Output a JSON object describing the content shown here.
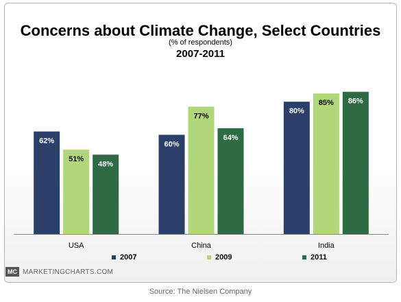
{
  "chart_data": {
    "type": "bar",
    "title": "Concerns about Climate Change, Select Countries",
    "subtitle": "(% of respondents)",
    "period": "2007-2011",
    "categories": [
      "USA",
      "China",
      "India"
    ],
    "series": [
      {
        "name": "2007",
        "color": "#2b3f6b",
        "values": [
          62,
          60,
          80
        ],
        "labels": [
          "62%",
          "60%",
          "80%"
        ]
      },
      {
        "name": "2009",
        "color": "#b2d77a",
        "values": [
          51,
          77,
          85
        ],
        "labels": [
          "51%",
          "77%",
          "85%"
        ]
      },
      {
        "name": "2011",
        "color": "#2e6b45",
        "values": [
          48,
          64,
          86
        ],
        "labels": [
          "48%",
          "64%",
          "86%"
        ]
      }
    ],
    "ylim": [
      0,
      100
    ],
    "grid": false,
    "legend_position": "bottom"
  },
  "footer": {
    "logo_text": "MC",
    "brand": "MARKETINGCHARTS.COM",
    "source": "Source: The Nielsen Company"
  }
}
